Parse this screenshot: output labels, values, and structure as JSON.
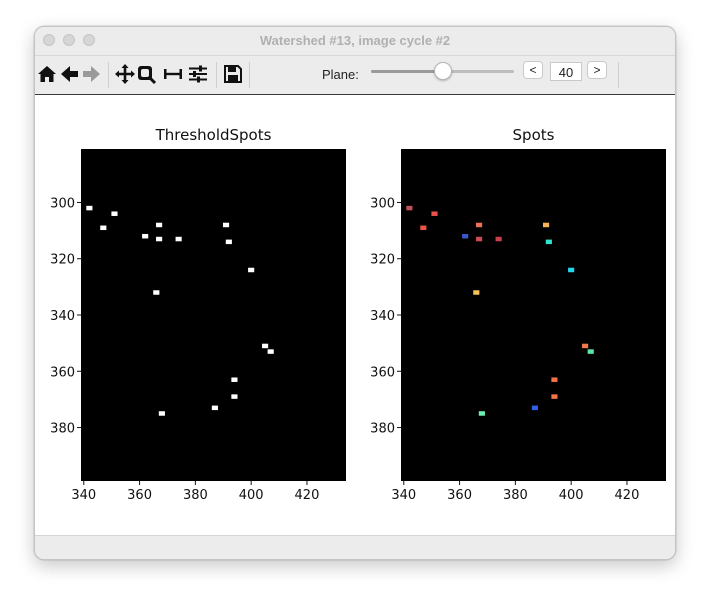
{
  "window": {
    "title": "Watershed #13, image cycle #2"
  },
  "toolbar": {
    "buttons": [
      "home-icon",
      "back-icon",
      "forward-icon",
      "pan-icon",
      "zoom-icon",
      "subplots-icon",
      "configure-icon",
      "save-icon"
    ],
    "plane_label": "Plane:",
    "plane_value": "40",
    "plane_fraction": 0.5,
    "prev_label": "<",
    "next_label": ">"
  },
  "chart_data": [
    {
      "type": "heatmap",
      "title": "ThresholdSpots",
      "xlim": [
        339,
        434
      ],
      "ylim": [
        399,
        281
      ],
      "xticks": [
        340,
        360,
        380,
        400,
        420
      ],
      "yticks": [
        300,
        320,
        340,
        360,
        380
      ],
      "background": "#000000",
      "spots": [
        {
          "x": 342,
          "y": 302,
          "color": "#ffffff"
        },
        {
          "x": 351,
          "y": 304,
          "color": "#ffffff"
        },
        {
          "x": 347,
          "y": 309,
          "color": "#ffffff"
        },
        {
          "x": 362,
          "y": 312,
          "color": "#ffffff"
        },
        {
          "x": 367,
          "y": 308,
          "color": "#ffffff"
        },
        {
          "x": 367,
          "y": 313,
          "color": "#ffffff"
        },
        {
          "x": 374,
          "y": 313,
          "color": "#ffffff"
        },
        {
          "x": 391,
          "y": 308,
          "color": "#ffffff"
        },
        {
          "x": 392,
          "y": 314,
          "color": "#ffffff"
        },
        {
          "x": 400,
          "y": 324,
          "color": "#ffffff"
        },
        {
          "x": 366,
          "y": 332,
          "color": "#ffffff"
        },
        {
          "x": 405,
          "y": 351,
          "color": "#ffffff"
        },
        {
          "x": 407,
          "y": 353,
          "color": "#ffffff"
        },
        {
          "x": 394,
          "y": 363,
          "color": "#ffffff"
        },
        {
          "x": 394,
          "y": 369,
          "color": "#ffffff"
        },
        {
          "x": 387,
          "y": 373,
          "color": "#ffffff"
        },
        {
          "x": 368,
          "y": 375,
          "color": "#ffffff"
        }
      ]
    },
    {
      "type": "heatmap",
      "title": "Spots",
      "xlim": [
        339,
        434
      ],
      "ylim": [
        399,
        281
      ],
      "xticks": [
        340,
        360,
        380,
        400,
        420
      ],
      "yticks": [
        300,
        320,
        340,
        360,
        380
      ],
      "background": "#000000",
      "spots": [
        {
          "x": 342,
          "y": 302,
          "color": "#c0505a"
        },
        {
          "x": 351,
          "y": 304,
          "color": "#e8534a"
        },
        {
          "x": 347,
          "y": 309,
          "color": "#e8534a"
        },
        {
          "x": 362,
          "y": 312,
          "color": "#3a56c8"
        },
        {
          "x": 367,
          "y": 308,
          "color": "#f0705a"
        },
        {
          "x": 367,
          "y": 313,
          "color": "#d04a58"
        },
        {
          "x": 374,
          "y": 313,
          "color": "#c8404e"
        },
        {
          "x": 391,
          "y": 308,
          "color": "#f7b25a"
        },
        {
          "x": 392,
          "y": 314,
          "color": "#2ee6d0"
        },
        {
          "x": 400,
          "y": 324,
          "color": "#23d4ee"
        },
        {
          "x": 366,
          "y": 332,
          "color": "#f7c25a"
        },
        {
          "x": 405,
          "y": 351,
          "color": "#f27a4a"
        },
        {
          "x": 407,
          "y": 353,
          "color": "#5ee6a8"
        },
        {
          "x": 394,
          "y": 363,
          "color": "#f7714a"
        },
        {
          "x": 394,
          "y": 369,
          "color": "#f7714a"
        },
        {
          "x": 387,
          "y": 373,
          "color": "#2f5fe8"
        },
        {
          "x": 368,
          "y": 375,
          "color": "#6ef0b0"
        }
      ]
    }
  ]
}
